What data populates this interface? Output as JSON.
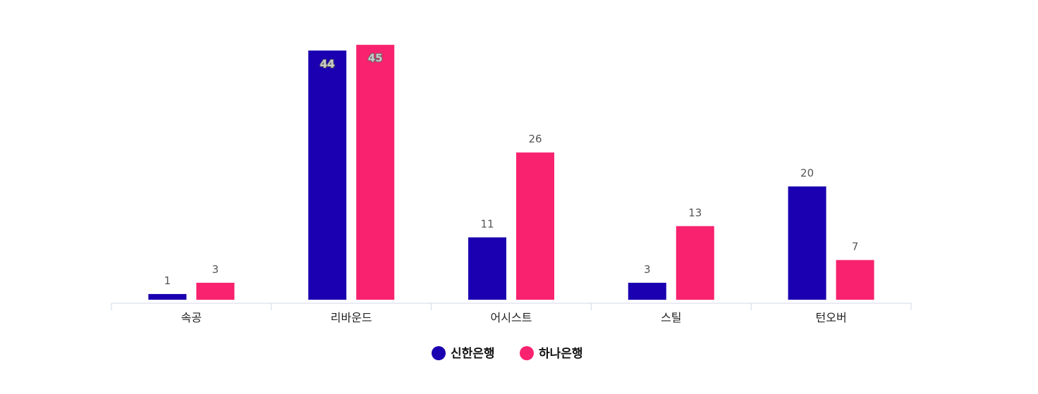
{
  "chart_data": {
    "type": "bar",
    "categories": [
      "속공",
      "리바운드",
      "어시스트",
      "스틸",
      "턴오버"
    ],
    "series": [
      {
        "name": "신한은행",
        "color": "#1a00b0",
        "values": [
          1,
          44,
          11,
          3,
          20
        ]
      },
      {
        "name": "하나은행",
        "color": "#f8226e",
        "values": [
          3,
          45,
          26,
          13,
          7
        ]
      }
    ],
    "title": "",
    "xlabel": "",
    "ylabel": "",
    "ylim": [
      0,
      45
    ],
    "grid": false,
    "legend": "bottom-center"
  }
}
